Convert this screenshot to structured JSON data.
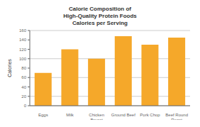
{
  "chart_data": {
    "type": "bar",
    "title": "Calorie Composition of\nHigh-Quality Protein Foods\nCalories per Serving",
    "categories": [
      "Eggs",
      "Milk",
      "Chicken\nBreast",
      "Ground Beef",
      "Pork Chop",
      "Beef Round\nRoast"
    ],
    "values": [
      70,
      120,
      100,
      148,
      130,
      145
    ],
    "color": "#F5A82A",
    "ylabel": "Calories",
    "ylim": [
      0,
      160
    ],
    "yticks": [
      0,
      20,
      40,
      60,
      80,
      100,
      120,
      140,
      160
    ],
    "grid": true
  }
}
